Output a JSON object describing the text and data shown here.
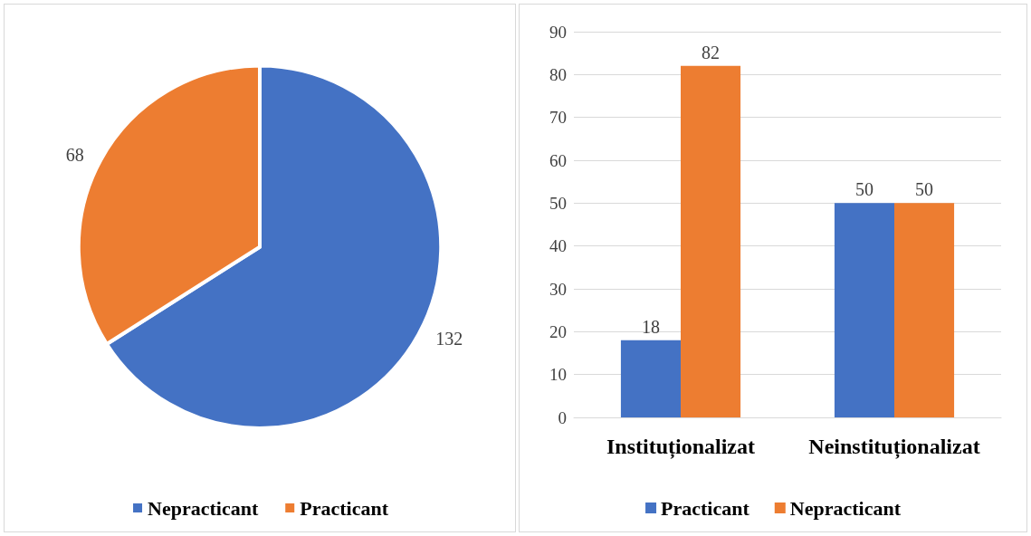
{
  "chart_data": [
    {
      "type": "pie",
      "categories": [
        "Nepracticant",
        "Practicant"
      ],
      "values": [
        132,
        68
      ],
      "colors": [
        "#4472c4",
        "#ed7d31"
      ],
      "data_labels": true,
      "legend": "bottom"
    },
    {
      "type": "bar",
      "categories": [
        "Instituționalizat",
        "Neinstituționalizat"
      ],
      "series": [
        {
          "name": "Practicant",
          "color": "#4472c4",
          "values": [
            18,
            50
          ]
        },
        {
          "name": "Nepracticant",
          "color": "#ed7d31",
          "values": [
            82,
            50
          ]
        }
      ],
      "ylim": [
        0,
        90
      ],
      "yticks": [
        0,
        10,
        20,
        30,
        40,
        50,
        60,
        70,
        80,
        90
      ],
      "grid": "y",
      "legend": "bottom",
      "data_labels": true
    }
  ]
}
